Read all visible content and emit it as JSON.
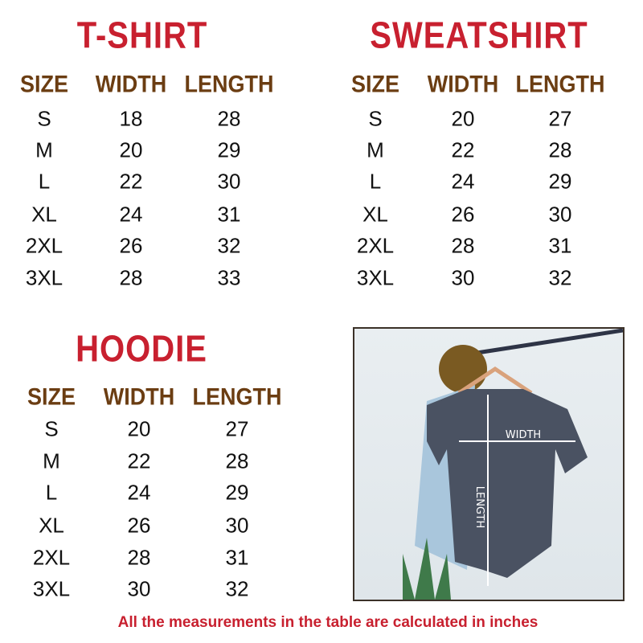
{
  "tables": [
    {
      "title": "T-SHIRT",
      "headers": [
        "SIZE",
        "WIDTH",
        "LENGTH"
      ],
      "rows": [
        [
          "S",
          "18",
          "28"
        ],
        [
          "M",
          "20",
          "29"
        ],
        [
          "L",
          "22",
          "30"
        ],
        [
          "XL",
          "24",
          "31"
        ],
        [
          "2XL",
          "26",
          "32"
        ],
        [
          "3XL",
          "28",
          "33"
        ]
      ]
    },
    {
      "title": "SWEATSHIRT",
      "headers": [
        "SIZE",
        "WIDTH",
        "LENGTH"
      ],
      "rows": [
        [
          "S",
          "20",
          "27"
        ],
        [
          "M",
          "22",
          "28"
        ],
        [
          "L",
          "24",
          "29"
        ],
        [
          "XL",
          "26",
          "30"
        ],
        [
          "2XL",
          "28",
          "31"
        ],
        [
          "3XL",
          "30",
          "32"
        ]
      ]
    },
    {
      "title": "HOODIE",
      "headers": [
        "SIZE",
        "WIDTH",
        "LENGTH"
      ],
      "rows": [
        [
          "S",
          "20",
          "27"
        ],
        [
          "M",
          "22",
          "28"
        ],
        [
          "L",
          "24",
          "29"
        ],
        [
          "XL",
          "26",
          "30"
        ],
        [
          "2XL",
          "28",
          "31"
        ],
        [
          "3XL",
          "30",
          "32"
        ]
      ]
    }
  ],
  "photo": {
    "width_label": "WIDTH",
    "length_label": "LENGTH"
  },
  "footer": "All the measurements in the table are calculated in inches",
  "colors": {
    "title": "#c8202f",
    "header": "#6b3d12"
  }
}
